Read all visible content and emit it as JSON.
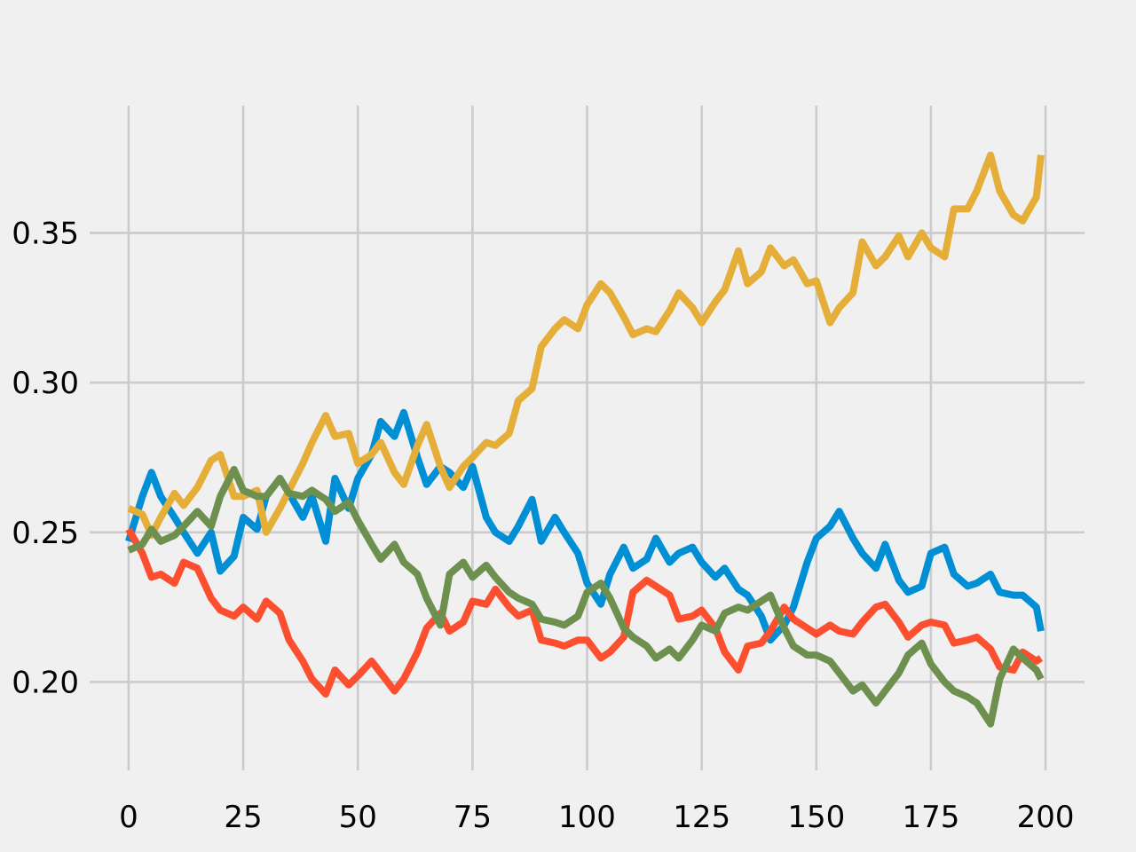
{
  "chart_data": {
    "type": "line",
    "title": "",
    "xlabel": "",
    "ylabel": "",
    "xlim": [
      -8.5,
      208.5
    ],
    "ylim": [
      0.1705,
      0.3925
    ],
    "x_ticks": [
      0,
      25,
      50,
      75,
      100,
      125,
      150,
      175,
      200
    ],
    "y_ticks": [
      0.2,
      0.25,
      0.3,
      0.35
    ],
    "x_tick_labels": [
      "0",
      "25",
      "50",
      "75",
      "100",
      "125",
      "150",
      "175",
      "200"
    ],
    "y_tick_labels": [
      "0.20",
      "0.25",
      "0.30",
      "0.35"
    ],
    "grid": true,
    "legend": "none",
    "style": "fivethirtyeight",
    "series": [
      {
        "color": "#008fd5",
        "x": [
          0,
          3,
          5,
          7,
          10,
          12,
          15,
          18,
          20,
          23,
          25,
          28,
          30,
          33,
          35,
          38,
          40,
          43,
          45,
          48,
          50,
          53,
          55,
          58,
          60,
          63,
          65,
          68,
          70,
          73,
          75,
          78,
          80,
          83,
          85,
          88,
          90,
          93,
          95,
          98,
          100,
          103,
          105,
          108,
          110,
          113,
          115,
          118,
          120,
          123,
          125,
          128,
          130,
          133,
          135,
          138,
          140,
          143,
          145,
          148,
          150,
          153,
          155,
          158,
          160,
          163,
          165,
          168,
          170,
          173,
          175,
          178,
          180,
          183,
          185,
          188,
          190,
          193,
          195,
          198,
          199
        ],
        "y": [
          0.247,
          0.262,
          0.27,
          0.262,
          0.255,
          0.25,
          0.243,
          0.25,
          0.237,
          0.242,
          0.255,
          0.251,
          0.262,
          0.268,
          0.263,
          0.255,
          0.262,
          0.247,
          0.268,
          0.258,
          0.268,
          0.276,
          0.287,
          0.282,
          0.29,
          0.275,
          0.266,
          0.272,
          0.27,
          0.265,
          0.272,
          0.255,
          0.25,
          0.247,
          0.252,
          0.261,
          0.247,
          0.255,
          0.25,
          0.243,
          0.233,
          0.226,
          0.236,
          0.245,
          0.238,
          0.241,
          0.248,
          0.24,
          0.243,
          0.245,
          0.24,
          0.235,
          0.238,
          0.231,
          0.229,
          0.222,
          0.214,
          0.219,
          0.225,
          0.24,
          0.248,
          0.252,
          0.257,
          0.248,
          0.243,
          0.238,
          0.246,
          0.234,
          0.23,
          0.232,
          0.243,
          0.245,
          0.236,
          0.232,
          0.233,
          0.236,
          0.23,
          0.229,
          0.229,
          0.225,
          0.217
        ]
      },
      {
        "color": "#fc4f30",
        "x": [
          0,
          3,
          5,
          7,
          10,
          12,
          15,
          18,
          20,
          23,
          25,
          28,
          30,
          33,
          35,
          38,
          40,
          43,
          45,
          48,
          50,
          53,
          55,
          58,
          60,
          63,
          65,
          68,
          70,
          73,
          75,
          78,
          80,
          83,
          85,
          88,
          90,
          93,
          95,
          98,
          100,
          103,
          105,
          108,
          110,
          113,
          115,
          118,
          120,
          123,
          125,
          128,
          130,
          133,
          135,
          138,
          140,
          143,
          145,
          148,
          150,
          153,
          155,
          158,
          160,
          163,
          165,
          168,
          170,
          173,
          175,
          178,
          180,
          183,
          185,
          188,
          190,
          193,
          195,
          198,
          199
        ],
        "y": [
          0.251,
          0.243,
          0.235,
          0.236,
          0.233,
          0.24,
          0.238,
          0.228,
          0.224,
          0.222,
          0.225,
          0.221,
          0.227,
          0.223,
          0.214,
          0.207,
          0.201,
          0.196,
          0.204,
          0.199,
          0.202,
          0.207,
          0.203,
          0.197,
          0.201,
          0.21,
          0.218,
          0.223,
          0.217,
          0.22,
          0.227,
          0.226,
          0.231,
          0.225,
          0.222,
          0.224,
          0.214,
          0.213,
          0.212,
          0.214,
          0.214,
          0.208,
          0.21,
          0.215,
          0.23,
          0.234,
          0.232,
          0.229,
          0.221,
          0.222,
          0.224,
          0.218,
          0.21,
          0.204,
          0.212,
          0.213,
          0.217,
          0.225,
          0.221,
          0.218,
          0.216,
          0.219,
          0.217,
          0.216,
          0.22,
          0.225,
          0.226,
          0.22,
          0.215,
          0.219,
          0.22,
          0.219,
          0.213,
          0.214,
          0.215,
          0.211,
          0.205,
          0.204,
          0.21,
          0.207,
          0.208
        ]
      },
      {
        "color": "#e5ae38",
        "x": [
          0,
          3,
          5,
          7,
          10,
          12,
          15,
          18,
          20,
          23,
          25,
          28,
          30,
          33,
          35,
          38,
          40,
          43,
          45,
          48,
          50,
          53,
          55,
          58,
          60,
          63,
          65,
          68,
          70,
          73,
          75,
          78,
          80,
          83,
          85,
          88,
          90,
          93,
          95,
          98,
          100,
          103,
          105,
          108,
          110,
          113,
          115,
          118,
          120,
          123,
          125,
          128,
          130,
          133,
          135,
          138,
          140,
          143,
          145,
          148,
          150,
          153,
          155,
          158,
          160,
          163,
          165,
          168,
          170,
          173,
          175,
          178,
          180,
          183,
          185,
          188,
          190,
          193,
          195,
          198,
          199
        ],
        "y": [
          0.258,
          0.256,
          0.249,
          0.255,
          0.263,
          0.259,
          0.265,
          0.274,
          0.276,
          0.262,
          0.262,
          0.264,
          0.25,
          0.258,
          0.264,
          0.273,
          0.28,
          0.289,
          0.282,
          0.283,
          0.273,
          0.276,
          0.28,
          0.27,
          0.266,
          0.279,
          0.286,
          0.272,
          0.265,
          0.272,
          0.275,
          0.28,
          0.279,
          0.283,
          0.294,
          0.298,
          0.312,
          0.318,
          0.321,
          0.318,
          0.326,
          0.333,
          0.33,
          0.322,
          0.316,
          0.318,
          0.317,
          0.324,
          0.33,
          0.325,
          0.32,
          0.327,
          0.331,
          0.344,
          0.333,
          0.337,
          0.345,
          0.339,
          0.341,
          0.333,
          0.334,
          0.32,
          0.325,
          0.33,
          0.347,
          0.339,
          0.342,
          0.349,
          0.342,
          0.35,
          0.345,
          0.342,
          0.358,
          0.358,
          0.364,
          0.376,
          0.364,
          0.356,
          0.354,
          0.362,
          0.376
        ]
      },
      {
        "color": "#6d904f",
        "x": [
          0,
          3,
          5,
          7,
          10,
          12,
          15,
          18,
          20,
          23,
          25,
          28,
          30,
          33,
          35,
          38,
          40,
          43,
          45,
          48,
          50,
          53,
          55,
          58,
          60,
          63,
          65,
          68,
          70,
          73,
          75,
          78,
          80,
          83,
          85,
          88,
          90,
          93,
          95,
          98,
          100,
          103,
          105,
          108,
          110,
          113,
          115,
          118,
          120,
          123,
          125,
          128,
          130,
          133,
          135,
          138,
          140,
          143,
          145,
          148,
          150,
          153,
          155,
          158,
          160,
          163,
          165,
          168,
          170,
          173,
          175,
          178,
          180,
          183,
          185,
          188,
          190,
          193,
          195,
          198,
          199
        ],
        "y": [
          0.244,
          0.246,
          0.251,
          0.247,
          0.249,
          0.252,
          0.257,
          0.252,
          0.262,
          0.271,
          0.264,
          0.262,
          0.262,
          0.268,
          0.263,
          0.262,
          0.264,
          0.261,
          0.257,
          0.26,
          0.254,
          0.246,
          0.241,
          0.246,
          0.24,
          0.236,
          0.228,
          0.219,
          0.236,
          0.24,
          0.235,
          0.239,
          0.235,
          0.23,
          0.228,
          0.226,
          0.221,
          0.22,
          0.219,
          0.222,
          0.23,
          0.233,
          0.228,
          0.218,
          0.215,
          0.212,
          0.208,
          0.211,
          0.208,
          0.214,
          0.219,
          0.217,
          0.223,
          0.225,
          0.224,
          0.227,
          0.229,
          0.218,
          0.212,
          0.209,
          0.209,
          0.207,
          0.203,
          0.197,
          0.199,
          0.193,
          0.197,
          0.203,
          0.209,
          0.213,
          0.206,
          0.2,
          0.197,
          0.195,
          0.193,
          0.186,
          0.201,
          0.211,
          0.208,
          0.204,
          0.201
        ]
      }
    ]
  }
}
